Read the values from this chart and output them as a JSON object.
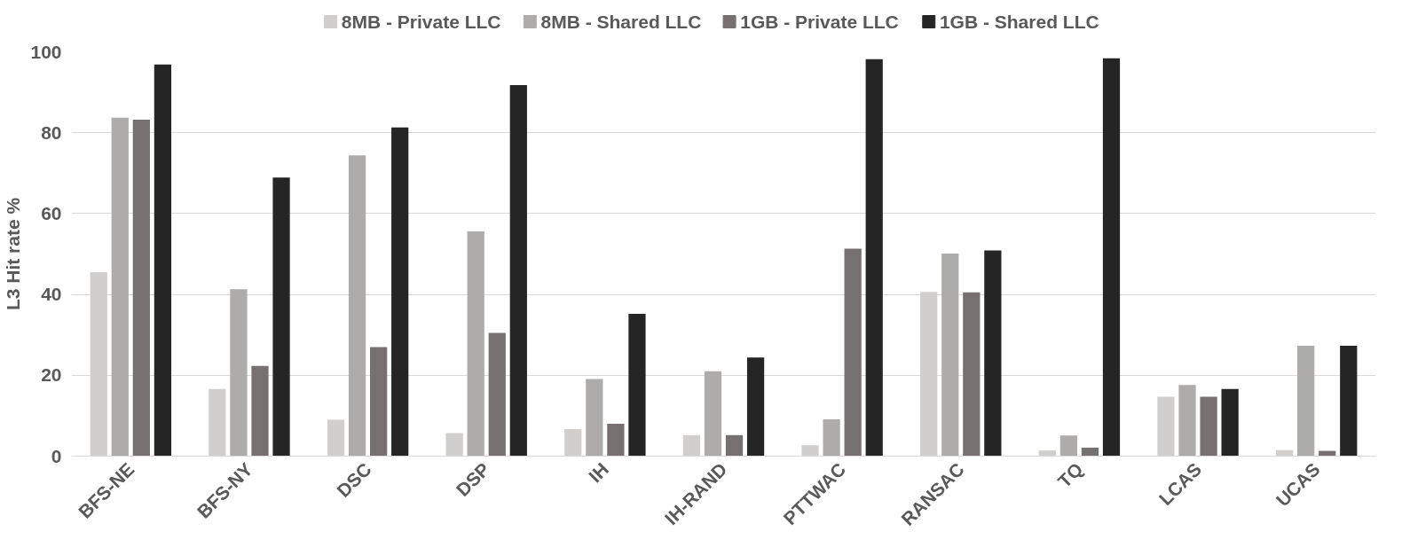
{
  "chart_data": {
    "type": "bar",
    "ylabel": "L3 Hit rate %",
    "categories": [
      "BFS-NE",
      "BFS-NY",
      "DSC",
      "DSP",
      "IH",
      "IH-RAND",
      "PTTWAC",
      "RANSAC",
      "TQ",
      "LCAS",
      "UCAS"
    ],
    "series": [
      {
        "name": "8MB - Private LLC",
        "color": "#d0cfce",
        "values": [
          45.5,
          16.6,
          9.0,
          5.7,
          6.7,
          5.2,
          2.7,
          40.6,
          1.4,
          14.7,
          1.5
        ]
      },
      {
        "name": "8MB - Shared LLC",
        "color": "#aeacab",
        "values": [
          83.7,
          41.3,
          74.4,
          55.6,
          19.1,
          21.0,
          9.1,
          50.1,
          5.1,
          17.6,
          27.3
        ]
      },
      {
        "name": "1GB - Private LLC",
        "color": "#767170",
        "values": [
          83.2,
          22.3,
          27.0,
          30.5,
          8.0,
          5.2,
          51.3,
          40.5,
          2.1,
          14.7,
          1.3
        ]
      },
      {
        "name": "1GB - Shared LLC",
        "color": "#252525",
        "values": [
          96.9,
          68.9,
          81.3,
          91.8,
          35.2,
          24.4,
          98.2,
          50.9,
          98.4,
          16.6,
          27.3
        ]
      }
    ],
    "ylim": [
      0,
      100
    ],
    "yticks": [
      0,
      20,
      40,
      60,
      80,
      100
    ],
    "grid": "y",
    "legend": "top"
  }
}
